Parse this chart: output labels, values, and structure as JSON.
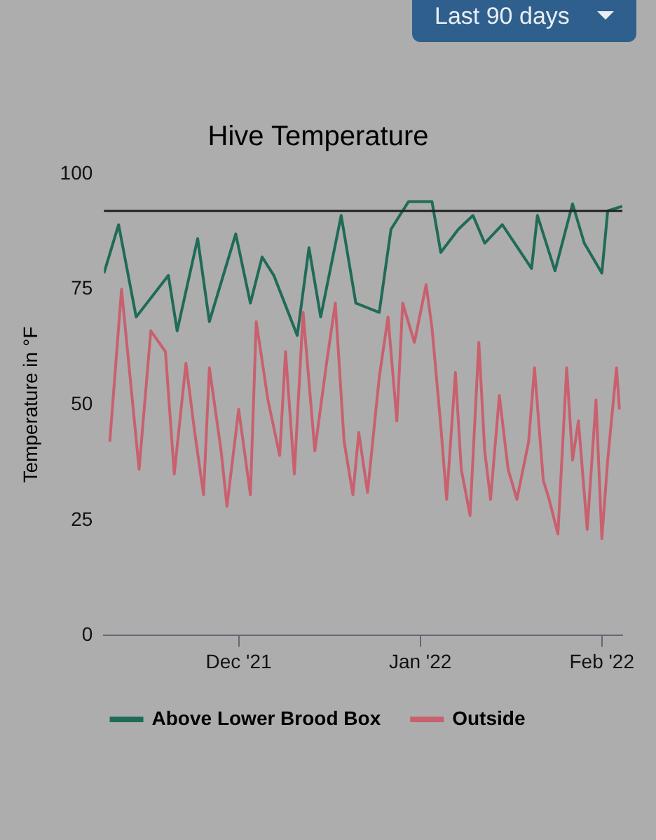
{
  "chart_data": {
    "type": "line",
    "title": "Hive Temperature",
    "ylabel": "Temperature in °F",
    "annotations": [
      "Last 90 days"
    ],
    "xlim": [
      "2021-11-08",
      "2022-02-04T12:00"
    ],
    "xticks": [
      {
        "value": "2021-12-01",
        "label": "Dec '21"
      },
      {
        "value": "2022-01-01",
        "label": "Jan '22"
      },
      {
        "value": "2022-02-01",
        "label": "Feb '22"
      }
    ],
    "ylim": [
      0,
      100
    ],
    "yticks": [
      0,
      25,
      50,
      75,
      100
    ],
    "grid": false,
    "legend": "bottom",
    "marker": "none",
    "line_style": "solid",
    "ref_lines": [
      {
        "axis": "y",
        "value": 92,
        "color": "#222222"
      }
    ],
    "series": [
      {
        "name": "Above Lower Brood Box",
        "color": "#1f6b57",
        "x": [
          "2021-11-08",
          "2021-11-10T12:00",
          "2021-11-13T12:00",
          "2021-11-19",
          "2021-11-20T12:00",
          "2021-11-24",
          "2021-11-26",
          "2021-11-30T12:00",
          "2021-12-03",
          "2021-12-05",
          "2021-12-07",
          "2021-12-11",
          "2021-12-13",
          "2021-12-15",
          "2021-12-18T12:00",
          "2021-12-21",
          "2021-12-25",
          "2021-12-27",
          "2021-12-30",
          "2022-01-03",
          "2022-01-04T12:00",
          "2022-01-07T12:00",
          "2022-01-10",
          "2022-01-12",
          "2022-01-15",
          "2022-01-20",
          "2022-01-21",
          "2022-01-24",
          "2022-01-27",
          "2022-01-29",
          "2022-02-01",
          "2022-02-02",
          "2022-02-04T12:00"
        ],
        "values": [
          78.5,
          89,
          69,
          78,
          66,
          86,
          68,
          87,
          72,
          82,
          78,
          65,
          84,
          69,
          91,
          72,
          70,
          88,
          94,
          94,
          83,
          88,
          91,
          85,
          89,
          79.5,
          91,
          79,
          93.5,
          85,
          78.5,
          92,
          93
        ]
      },
      {
        "name": "Outside",
        "color": "#c9606e",
        "x": [
          "2021-11-09",
          "2021-11-11",
          "2021-11-13",
          "2021-11-14",
          "2021-11-16",
          "2021-11-18T12:00",
          "2021-11-20",
          "2021-11-22",
          "2021-11-23T12:00",
          "2021-11-25",
          "2021-11-26",
          "2021-11-28",
          "2021-11-29",
          "2021-12-01",
          "2021-12-03",
          "2021-12-04",
          "2021-12-06",
          "2021-12-08",
          "2021-12-09",
          "2021-12-10T12:00",
          "2021-12-12",
          "2021-12-14",
          "2021-12-16",
          "2021-12-17T12:00",
          "2021-12-19",
          "2021-12-20T12:00",
          "2021-12-21T12:00",
          "2021-12-23",
          "2021-12-25",
          "2021-12-26T12:00",
          "2021-12-28",
          "2021-12-29",
          "2021-12-31",
          "2022-01-02",
          "2022-01-03",
          "2022-01-04T12:00",
          "2022-01-05T12:00",
          "2022-01-07",
          "2022-01-08",
          "2022-01-09T12:00",
          "2022-01-11",
          "2022-01-12",
          "2022-01-13",
          "2022-01-14T12:00",
          "2022-01-16",
          "2022-01-17T12:00",
          "2022-01-19T12:00",
          "2022-01-20T12:00",
          "2022-01-22",
          "2022-01-23",
          "2022-01-24T12:00",
          "2022-01-26",
          "2022-01-27",
          "2022-01-28",
          "2022-01-29T12:00",
          "2022-01-31",
          "2022-02-01",
          "2022-02-02",
          "2022-02-03T12:00",
          "2022-02-04"
        ],
        "values": [
          42,
          75,
          49,
          36,
          66,
          61.5,
          35,
          59,
          44,
          30.5,
          58,
          40,
          28,
          49,
          30.5,
          68,
          51,
          39,
          61.5,
          35,
          70,
          40,
          59,
          72,
          42,
          30.5,
          44,
          31,
          56,
          69,
          46.5,
          72,
          63.5,
          76,
          66.7,
          45.5,
          29.5,
          57,
          36,
          26,
          63.5,
          40,
          29.5,
          52,
          36,
          29.5,
          42,
          58,
          33.6,
          29.5,
          22,
          58,
          38,
          46.5,
          23,
          51,
          21,
          38,
          58,
          49
        ]
      }
    ]
  }
}
